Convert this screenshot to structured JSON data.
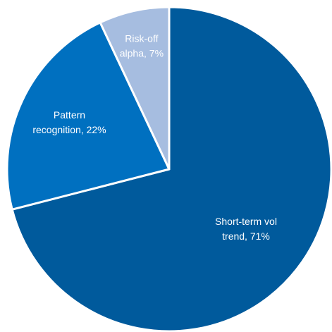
{
  "chart_data": {
    "type": "pie",
    "start_angle_deg": 0,
    "direction": "clockwise",
    "slices": [
      {
        "label_lines": [
          "Short-term vol",
          "trend, 71%"
        ],
        "value": 71,
        "color": "#005a9c"
      },
      {
        "label_lines": [
          "Pattern",
          "recognition, 22%"
        ],
        "value": 22,
        "color": "#0070c0"
      },
      {
        "label_lines": [
          "Risk-off",
          "alpha, 7%"
        ],
        "value": 7,
        "color": "#a6bde0"
      }
    ]
  }
}
